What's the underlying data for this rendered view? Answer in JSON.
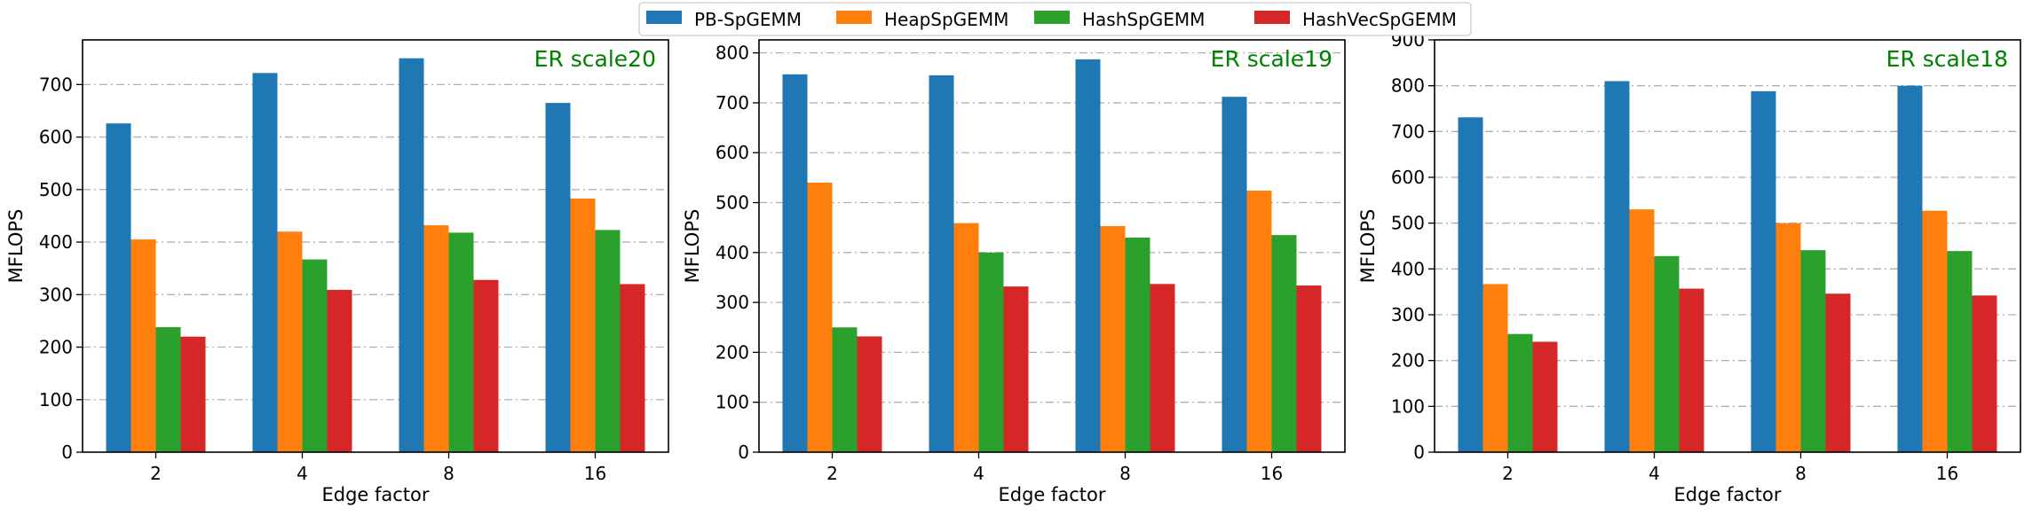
{
  "legend": {
    "placement": "top-center",
    "entries": [
      {
        "name": "PB-SpGEMM",
        "color": "#1f77b4"
      },
      {
        "name": "HeapSpGEMM",
        "color": "#ff7f0e"
      },
      {
        "name": "HashSpGEMM",
        "color": "#2ca02c"
      },
      {
        "name": "HashVecSpGEMM",
        "color": "#d62728"
      }
    ]
  },
  "title_color": "#008000",
  "chart_data": [
    {
      "type": "bar",
      "title": "ER scale20",
      "xlabel": "Edge factor",
      "ylabel": "MFLOPS",
      "categories": [
        "2",
        "4",
        "8",
        "16"
      ],
      "ylim": [
        0,
        785
      ],
      "yticks": [
        0,
        100,
        200,
        300,
        400,
        500,
        600,
        700
      ],
      "grid": true,
      "series": [
        {
          "name": "PB-SpGEMM",
          "values": [
            626,
            722,
            750,
            665
          ]
        },
        {
          "name": "HeapSpGEMM",
          "values": [
            405,
            420,
            432,
            483
          ]
        },
        {
          "name": "HashSpGEMM",
          "values": [
            238,
            367,
            418,
            423
          ]
        },
        {
          "name": "HashVecSpGEMM",
          "values": [
            220,
            309,
            328,
            320
          ]
        }
      ]
    },
    {
      "type": "bar",
      "title": "ER scale19",
      "xlabel": "Edge factor",
      "ylabel": "MFLOPS",
      "categories": [
        "2",
        "4",
        "8",
        "16"
      ],
      "ylim": [
        0,
        826
      ],
      "yticks": [
        0,
        100,
        200,
        300,
        400,
        500,
        600,
        700,
        800
      ],
      "grid": true,
      "series": [
        {
          "name": "PB-SpGEMM",
          "values": [
            757,
            755,
            787,
            712
          ]
        },
        {
          "name": "HeapSpGEMM",
          "values": [
            540,
            459,
            453,
            524
          ]
        },
        {
          "name": "HashSpGEMM",
          "values": [
            250,
            400,
            430,
            435
          ]
        },
        {
          "name": "HashVecSpGEMM",
          "values": [
            232,
            332,
            337,
            334
          ]
        }
      ]
    },
    {
      "type": "bar",
      "title": "ER scale18",
      "xlabel": "Edge factor",
      "ylabel": "MFLOPS",
      "categories": [
        "2",
        "4",
        "8",
        "16"
      ],
      "ylim": [
        0,
        900
      ],
      "yticks": [
        0,
        100,
        200,
        300,
        400,
        500,
        600,
        700,
        800,
        900
      ],
      "grid": true,
      "series": [
        {
          "name": "PB-SpGEMM",
          "values": [
            731,
            810,
            788,
            800
          ]
        },
        {
          "name": "HeapSpGEMM",
          "values": [
            367,
            530,
            500,
            527
          ]
        },
        {
          "name": "HashSpGEMM",
          "values": [
            258,
            428,
            441,
            439
          ]
        },
        {
          "name": "HashVecSpGEMM",
          "values": [
            241,
            357,
            346,
            342
          ]
        }
      ]
    }
  ]
}
